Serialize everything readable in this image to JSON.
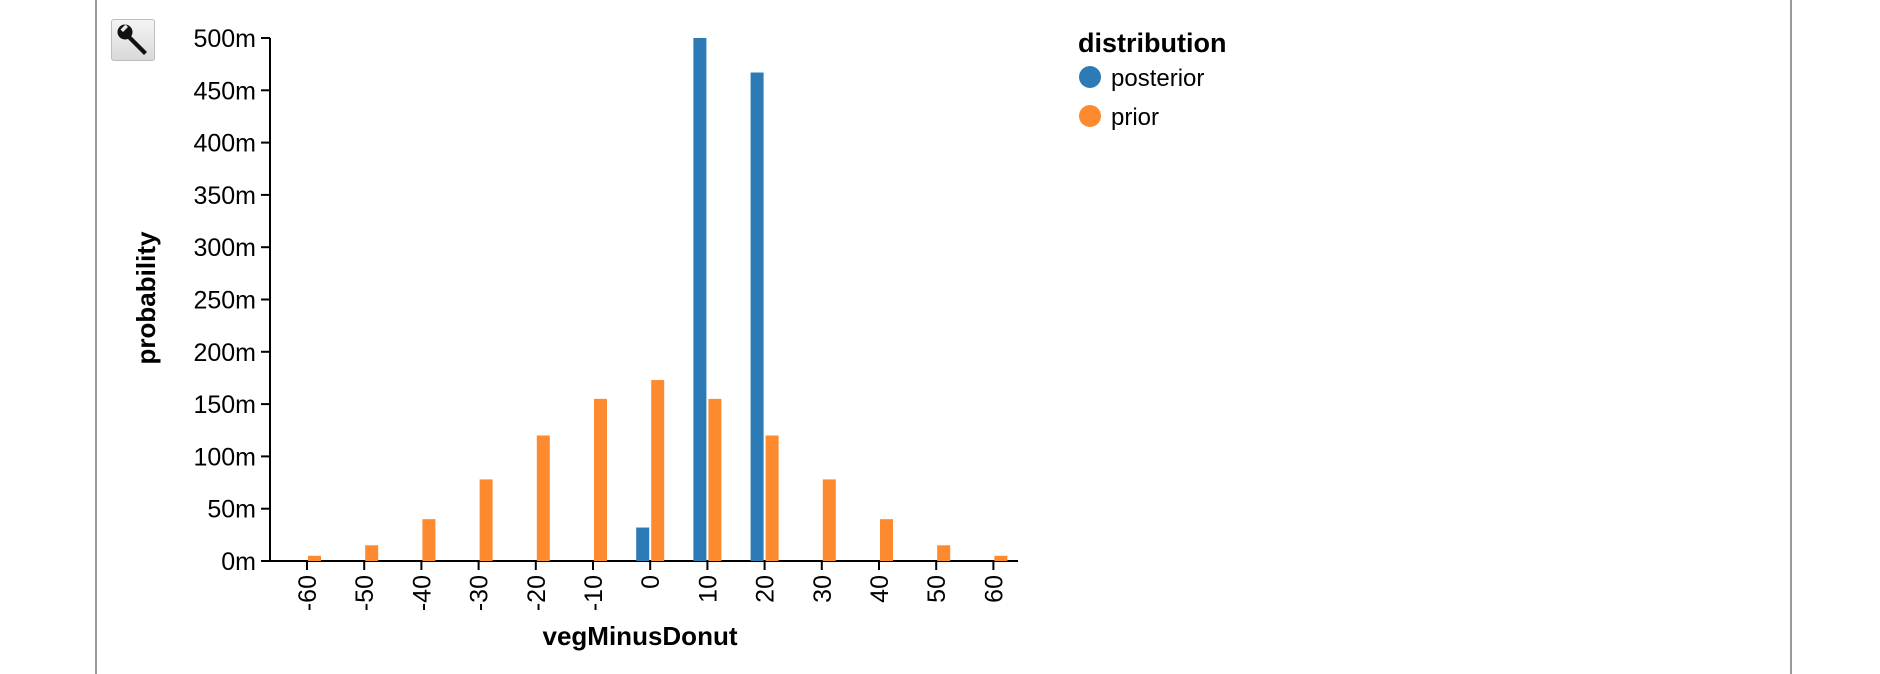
{
  "toolbar": {
    "tool_icon": "wrench-icon"
  },
  "chart_data": {
    "type": "bar",
    "xlabel": "vegMinusDonut",
    "ylabel": "probability",
    "categories": [
      "-60",
      "-50",
      "-40",
      "-30",
      "-20",
      "-10",
      "0",
      "10",
      "20",
      "30",
      "40",
      "50",
      "60"
    ],
    "yticks": [
      {
        "value": 0,
        "label": "0m"
      },
      {
        "value": 0.05,
        "label": "50m"
      },
      {
        "value": 0.1,
        "label": "100m"
      },
      {
        "value": 0.15,
        "label": "150m"
      },
      {
        "value": 0.2,
        "label": "200m"
      },
      {
        "value": 0.25,
        "label": "250m"
      },
      {
        "value": 0.3,
        "label": "300m"
      },
      {
        "value": 0.35,
        "label": "350m"
      },
      {
        "value": 0.4,
        "label": "400m"
      },
      {
        "value": 0.45,
        "label": "450m"
      },
      {
        "value": 0.5,
        "label": "500m"
      }
    ],
    "ylim": [
      0,
      0.5
    ],
    "legend": {
      "title": "distribution",
      "placement": "top-right"
    },
    "series": [
      {
        "name": "posterior",
        "color": "#2c7bb6",
        "values": [
          0,
          0,
          0,
          0,
          0,
          0,
          0.032,
          0.5,
          0.467,
          0,
          0,
          0,
          0
        ]
      },
      {
        "name": "prior",
        "color": "#fd8a2e",
        "values": [
          0.005,
          0.015,
          0.04,
          0.078,
          0.12,
          0.155,
          0.173,
          0.155,
          0.12,
          0.078,
          0.04,
          0.015,
          0.005
        ]
      }
    ]
  }
}
